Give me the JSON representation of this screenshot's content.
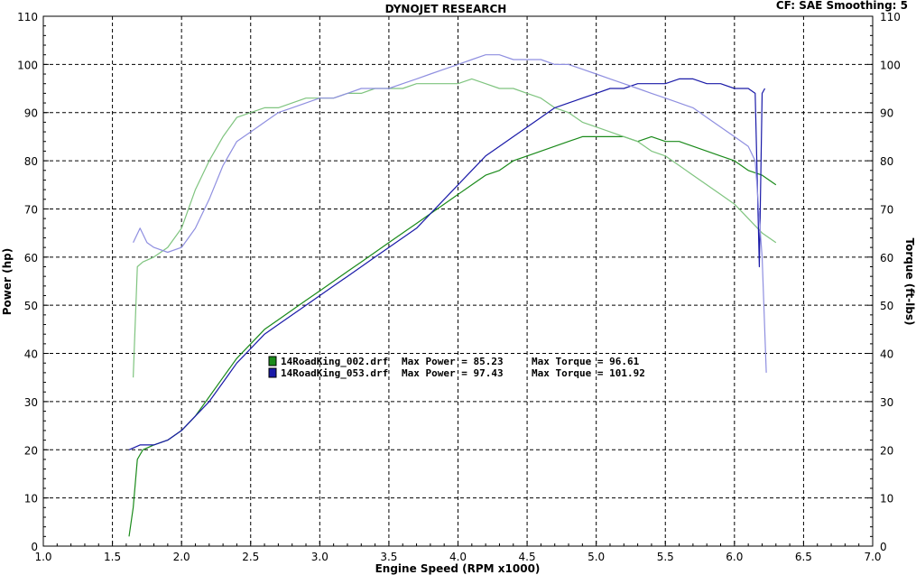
{
  "header": {
    "title": "DYNOJET RESEARCH",
    "settings": "CF: SAE  Smoothing: 5"
  },
  "chart_data": {
    "type": "line",
    "title": "DYNOJET RESEARCH",
    "xlabel": "Engine Speed (RPM x1000)",
    "ylabel": "Power (hp)",
    "y2label": "Torque (ft-lbs)",
    "xlim": [
      1.0,
      7.0
    ],
    "ylim": [
      0,
      110
    ],
    "y2lim": [
      0,
      110
    ],
    "x_ticks": [
      "1.0",
      "1.5",
      "2.0",
      "2.5",
      "3.0",
      "3.5",
      "4.0",
      "4.5",
      "5.0",
      "5.5",
      "6.0",
      "6.5",
      "7.0"
    ],
    "y_ticks": [
      "0",
      "10",
      "20",
      "30",
      "40",
      "50",
      "60",
      "70",
      "80",
      "90",
      "100",
      "110"
    ],
    "grid": true,
    "legend_placement": "center-left",
    "series": [
      {
        "name": "14RoadKing_002.drf",
        "measure": "power",
        "color": "#1a8a1a",
        "x": [
          1.62,
          1.65,
          1.68,
          1.72,
          1.8,
          1.9,
          2.0,
          2.1,
          2.2,
          2.3,
          2.4,
          2.5,
          2.6,
          2.7,
          2.8,
          2.9,
          3.0,
          3.1,
          3.2,
          3.3,
          3.4,
          3.5,
          3.6,
          3.7,
          3.8,
          3.9,
          4.0,
          4.1,
          4.2,
          4.3,
          4.4,
          4.5,
          4.6,
          4.7,
          4.8,
          4.9,
          5.0,
          5.1,
          5.2,
          5.3,
          5.4,
          5.5,
          5.6,
          5.7,
          5.8,
          5.9,
          6.0,
          6.1,
          6.2,
          6.3
        ],
        "values": [
          2,
          8,
          18,
          20,
          21,
          22,
          24,
          27,
          31,
          35,
          39,
          42,
          45,
          47,
          49,
          51,
          53,
          55,
          57,
          59,
          61,
          63,
          65,
          67,
          69,
          71,
          73,
          75,
          77,
          78,
          80,
          81,
          82,
          83,
          84,
          85,
          85,
          85,
          85,
          84,
          85,
          84,
          84,
          83,
          82,
          81,
          80,
          78,
          77,
          75
        ]
      },
      {
        "name": "14RoadKing_002.drf",
        "measure": "torque",
        "color": "#7fc47f",
        "x": [
          1.65,
          1.68,
          1.72,
          1.8,
          1.9,
          2.0,
          2.1,
          2.2,
          2.3,
          2.4,
          2.5,
          2.6,
          2.7,
          2.8,
          2.9,
          3.0,
          3.1,
          3.2,
          3.3,
          3.4,
          3.5,
          3.6,
          3.7,
          3.8,
          3.9,
          4.0,
          4.1,
          4.2,
          4.3,
          4.4,
          4.5,
          4.6,
          4.7,
          4.8,
          4.9,
          5.0,
          5.1,
          5.2,
          5.3,
          5.4,
          5.5,
          5.6,
          5.7,
          5.8,
          5.9,
          6.0,
          6.1,
          6.2,
          6.3
        ],
        "values": [
          35,
          58,
          59,
          60,
          62,
          66,
          74,
          80,
          85,
          89,
          90,
          91,
          91,
          92,
          93,
          93,
          93,
          94,
          94,
          95,
          95,
          95,
          96,
          96,
          96,
          96,
          97,
          96,
          95,
          95,
          94,
          93,
          91,
          90,
          88,
          87,
          86,
          85,
          84,
          82,
          81,
          79,
          77,
          75,
          73,
          71,
          68,
          65,
          63
        ]
      },
      {
        "name": "14RoadKing_053.drf",
        "measure": "power",
        "color": "#1a1aa8",
        "x": [
          1.62,
          1.7,
          1.8,
          1.9,
          2.0,
          2.1,
          2.2,
          2.3,
          2.4,
          2.5,
          2.6,
          2.7,
          2.8,
          2.9,
          3.0,
          3.1,
          3.2,
          3.3,
          3.4,
          3.5,
          3.6,
          3.7,
          3.8,
          3.9,
          4.0,
          4.1,
          4.2,
          4.3,
          4.4,
          4.5,
          4.6,
          4.7,
          4.8,
          4.9,
          5.0,
          5.1,
          5.2,
          5.3,
          5.4,
          5.5,
          5.6,
          5.7,
          5.8,
          5.9,
          6.0,
          6.1,
          6.15,
          6.18,
          6.2,
          6.22
        ],
        "values": [
          20,
          21,
          21,
          22,
          24,
          27,
          30,
          34,
          38,
          41,
          44,
          46,
          48,
          50,
          52,
          54,
          56,
          58,
          60,
          62,
          64,
          66,
          69,
          72,
          75,
          78,
          81,
          83,
          85,
          87,
          89,
          91,
          92,
          93,
          94,
          95,
          95,
          96,
          96,
          96,
          97,
          97,
          96,
          96,
          95,
          95,
          94,
          58,
          94,
          95
        ]
      },
      {
        "name": "14RoadKing_053.drf",
        "measure": "torque",
        "color": "#8f8fe0",
        "x": [
          1.65,
          1.7,
          1.75,
          1.8,
          1.9,
          2.0,
          2.1,
          2.2,
          2.3,
          2.4,
          2.5,
          2.6,
          2.7,
          2.8,
          2.9,
          3.0,
          3.1,
          3.2,
          3.3,
          3.4,
          3.5,
          3.6,
          3.7,
          3.8,
          3.9,
          4.0,
          4.1,
          4.2,
          4.3,
          4.4,
          4.5,
          4.6,
          4.7,
          4.8,
          4.9,
          5.0,
          5.1,
          5.2,
          5.3,
          5.4,
          5.5,
          5.6,
          5.7,
          5.8,
          5.9,
          6.0,
          6.1,
          6.15,
          6.2,
          6.23
        ],
        "values": [
          63,
          66,
          63,
          62,
          61,
          62,
          66,
          72,
          79,
          84,
          86,
          88,
          90,
          91,
          92,
          93,
          93,
          94,
          95,
          95,
          95,
          96,
          97,
          98,
          99,
          100,
          101,
          102,
          102,
          101,
          101,
          101,
          100,
          100,
          99,
          98,
          97,
          96,
          95,
          94,
          93,
          92,
          91,
          89,
          87,
          85,
          83,
          80,
          60,
          36
        ]
      }
    ],
    "annotations": [
      {
        "file": "14RoadKing_002.drf",
        "max_power_label": "Max Power = 85.23",
        "max_torque_label": "Max Torque = 96.61",
        "color": "#1a8a1a"
      },
      {
        "file": "14RoadKing_053.drf",
        "max_power_label": "Max Power = 97.43",
        "max_torque_label": "Max Torque = 101.92",
        "color": "#1a1aa8"
      }
    ]
  }
}
